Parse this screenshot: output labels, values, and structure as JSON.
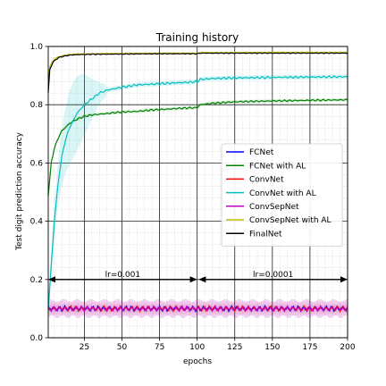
{
  "chart_data": {
    "type": "line",
    "title": "Training history",
    "xlabel": "epochs",
    "ylabel": "Test digit prediction accuracy",
    "xlim": [
      1,
      200
    ],
    "ylim": [
      0.0,
      1.0
    ],
    "xticks": [
      25,
      50,
      75,
      100,
      125,
      150,
      175,
      200
    ],
    "yticks": [
      0.0,
      0.2,
      0.4,
      0.6,
      0.8,
      1.0
    ],
    "grid": true,
    "legend_position": "center-right",
    "series": [
      {
        "name": "FCNet",
        "color": "#0000ff",
        "x": [
          1,
          200
        ],
        "values": [
          0.1,
          0.1
        ]
      },
      {
        "name": "FCNet with AL",
        "color": "#008000",
        "x": [
          1,
          3,
          5,
          8,
          10,
          15,
          20,
          25,
          30,
          40,
          50,
          60,
          70,
          80,
          90,
          100,
          101,
          102,
          110,
          125,
          150,
          175,
          200
        ],
        "values": [
          0.49,
          0.6,
          0.65,
          0.69,
          0.71,
          0.735,
          0.75,
          0.76,
          0.765,
          0.77,
          0.775,
          0.777,
          0.782,
          0.785,
          0.788,
          0.79,
          0.795,
          0.8,
          0.805,
          0.81,
          0.813,
          0.815,
          0.817
        ]
      },
      {
        "name": "ConvNet",
        "color": "#ff0000",
        "x": [
          1,
          200
        ],
        "values": [
          0.1,
          0.1
        ]
      },
      {
        "name": "ConvNet with AL",
        "color": "#00bfbf",
        "x": [
          1,
          3,
          5,
          8,
          10,
          12,
          15,
          20,
          25,
          30,
          35,
          40,
          50,
          60,
          75,
          90,
          100,
          101,
          102,
          110,
          125,
          150,
          175,
          200
        ],
        "values": [
          0.1,
          0.25,
          0.4,
          0.55,
          0.62,
          0.67,
          0.72,
          0.77,
          0.8,
          0.82,
          0.84,
          0.85,
          0.86,
          0.868,
          0.872,
          0.876,
          0.879,
          0.883,
          0.887,
          0.89,
          0.892,
          0.894,
          0.895,
          0.896
        ]
      },
      {
        "name": "ConvSepNet",
        "color": "#bf00bf",
        "x": [
          1,
          200
        ],
        "values": [
          0.1,
          0.1
        ]
      },
      {
        "name": "ConvSepNet with AL",
        "color": "#bfbf00",
        "x": [
          1,
          2,
          4,
          6,
          8,
          10,
          15,
          20,
          30,
          50,
          75,
          100,
          101,
          102,
          125,
          150,
          175,
          200
        ],
        "values": [
          0.89,
          0.93,
          0.95,
          0.96,
          0.965,
          0.968,
          0.972,
          0.974,
          0.975,
          0.976,
          0.977,
          0.977,
          0.978,
          0.979,
          0.979,
          0.98,
          0.98,
          0.98
        ]
      },
      {
        "name": "FinalNet",
        "color": "#000000",
        "x": [
          1,
          2,
          4,
          6,
          8,
          10,
          15,
          20,
          30,
          50,
          75,
          100,
          101,
          102,
          125,
          150,
          175,
          200
        ],
        "values": [
          0.84,
          0.92,
          0.945,
          0.955,
          0.962,
          0.965,
          0.97,
          0.972,
          0.973,
          0.974,
          0.975,
          0.975,
          0.976,
          0.977,
          0.977,
          0.977,
          0.977,
          0.977
        ]
      }
    ],
    "annotations": [
      {
        "text": "lr=0.001",
        "x_start": 1,
        "x_end": 100,
        "y": 0.2
      },
      {
        "text": "lr=0.0001",
        "x_start": 101,
        "x_end": 200,
        "y": 0.2
      }
    ]
  }
}
